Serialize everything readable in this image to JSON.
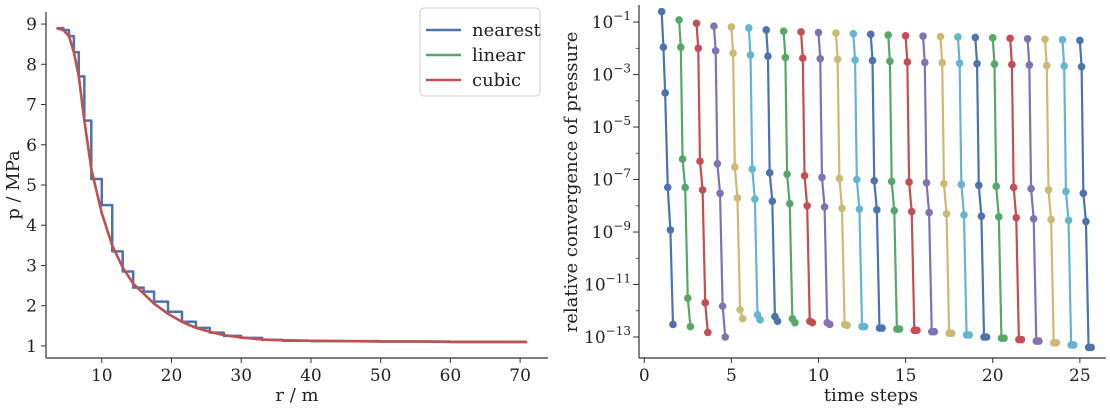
{
  "chart_data": [
    {
      "type": "line",
      "xlabel": "r / m",
      "ylabel": "p / MPa",
      "xlim": [
        2,
        74
      ],
      "ylim": [
        0.7,
        9.3
      ],
      "xticks": [
        10,
        20,
        30,
        40,
        50,
        60,
        70
      ],
      "yticks": [
        1,
        2,
        3,
        4,
        5,
        6,
        7,
        8,
        9
      ],
      "legend_position": "top-right",
      "series": [
        {
          "name": "nearest",
          "color": "#4c72b0",
          "step": true,
          "x": [
            3.5,
            4.5,
            5.3,
            6.0,
            6.7,
            7.5,
            8.5,
            10.0,
            11.5,
            13.0,
            14.5,
            16.0,
            17.5,
            19.5,
            21.5,
            23.5,
            25.5,
            27.5,
            30.0,
            33.0,
            36.0,
            40.0,
            45.0,
            50.0,
            55.0,
            60.0,
            65.0,
            71.0
          ],
          "y": [
            8.9,
            8.85,
            8.7,
            8.3,
            7.7,
            6.6,
            5.15,
            4.5,
            3.35,
            2.85,
            2.45,
            2.35,
            2.1,
            1.85,
            1.6,
            1.45,
            1.33,
            1.25,
            1.2,
            1.15,
            1.13,
            1.12,
            1.12,
            1.11,
            1.11,
            1.1,
            1.1,
            1.1
          ]
        },
        {
          "name": "linear",
          "color": "#55a868",
          "step": false,
          "x": [
            3.5,
            4.5,
            5.3,
            6.0,
            6.7,
            7.5,
            8.5,
            10.0,
            11.5,
            13.0,
            14.5,
            16.0,
            17.5,
            19.5,
            21.5,
            23.5,
            25.5,
            27.5,
            30.0,
            33.0,
            36.0,
            40.0,
            45.0,
            50.0,
            55.0,
            60.0,
            65.0,
            71.0
          ],
          "y": [
            8.9,
            8.85,
            8.7,
            8.3,
            7.7,
            6.6,
            5.4,
            4.3,
            3.5,
            2.95,
            2.55,
            2.3,
            2.05,
            1.8,
            1.6,
            1.45,
            1.35,
            1.27,
            1.21,
            1.16,
            1.14,
            1.13,
            1.12,
            1.11,
            1.11,
            1.1,
            1.1,
            1.1
          ]
        },
        {
          "name": "cubic",
          "color": "#c44e52",
          "step": false,
          "x": [
            3.5,
            4.5,
            5.3,
            6.0,
            6.7,
            7.5,
            8.5,
            10.0,
            11.5,
            13.0,
            14.5,
            16.0,
            17.5,
            19.5,
            21.5,
            23.5,
            25.5,
            27.5,
            30.0,
            33.0,
            36.0,
            40.0,
            45.0,
            50.0,
            55.0,
            60.0,
            65.0,
            71.0
          ],
          "y": [
            8.9,
            8.85,
            8.7,
            8.3,
            7.7,
            6.6,
            5.4,
            4.3,
            3.5,
            2.95,
            2.55,
            2.3,
            2.05,
            1.8,
            1.6,
            1.45,
            1.35,
            1.27,
            1.21,
            1.16,
            1.14,
            1.13,
            1.12,
            1.11,
            1.11,
            1.1,
            1.1,
            1.1
          ]
        }
      ]
    },
    {
      "type": "line",
      "xlabel": "time steps",
      "ylabel": "relative convergence of pressure",
      "yscale": "log",
      "xlim": [
        -0.3,
        26.5
      ],
      "ylim_log10": [
        -13.8,
        -0.35
      ],
      "xticks": [
        0,
        5,
        10,
        15,
        20,
        25
      ],
      "yticks": [
        -1,
        -3,
        -5,
        -7,
        -9,
        -11,
        -13
      ],
      "yticklabels": [
        "10^−1",
        "10^−3",
        "10^−5",
        "10^−7",
        "10^−9",
        "10^−11",
        "10^−13"
      ],
      "marker": "circle",
      "palette": [
        "#4c72b0",
        "#55a868",
        "#c44e52",
        "#8172b2",
        "#ccb974",
        "#64b5cd"
      ],
      "series": [
        {
          "x": [
            1.0,
            1.1,
            1.2,
            1.35,
            1.5,
            1.65
          ],
          "y": [
            0.25,
            0.011,
            0.0002,
            5e-08,
            1.2e-09,
            3e-13
          ]
        },
        {
          "x": [
            2.0,
            2.1,
            2.2,
            2.35,
            2.5,
            2.65
          ],
          "y": [
            0.12,
            0.011,
            6e-07,
            5e-08,
            3e-12,
            2.5e-13
          ]
        },
        {
          "x": [
            3.0,
            3.1,
            3.2,
            3.35,
            3.5,
            3.65
          ],
          "y": [
            0.09,
            0.01,
            5e-07,
            4e-08,
            2e-12,
            1.5e-13
          ]
        },
        {
          "x": [
            4.0,
            4.1,
            4.2,
            4.35,
            4.5,
            4.65
          ],
          "y": [
            0.07,
            0.008,
            4e-07,
            3e-08,
            1.5e-12,
            1e-13
          ]
        },
        {
          "x": [
            5.0,
            5.1,
            5.2,
            5.35,
            5.5,
            5.65
          ],
          "y": [
            0.065,
            0.0065,
            3e-07,
            2e-08,
            1.1e-12,
            5e-13
          ]
        },
        {
          "x": [
            6.0,
            6.1,
            6.2,
            6.35,
            6.5,
            6.65
          ],
          "y": [
            0.06,
            0.0055,
            2.5e-07,
            1.8e-08,
            7e-13,
            4.5e-13
          ]
        },
        {
          "x": [
            7.0,
            7.1,
            7.2,
            7.35,
            7.5,
            7.65
          ],
          "y": [
            0.05,
            0.005,
            1.8e-07,
            1.5e-08,
            6e-13,
            4e-13
          ]
        },
        {
          "x": [
            8.0,
            8.1,
            8.2,
            8.35,
            8.5,
            8.65
          ],
          "y": [
            0.045,
            0.0045,
            1.6e-07,
            1.2e-08,
            5e-13,
            3.5e-13
          ]
        },
        {
          "x": [
            9.0,
            9.1,
            9.2,
            9.35,
            9.5,
            9.65
          ],
          "y": [
            0.042,
            0.0042,
            1.4e-07,
            1e-08,
            4e-13,
            3.5e-13
          ]
        },
        {
          "x": [
            10.0,
            10.1,
            10.2,
            10.35,
            10.5,
            10.65
          ],
          "y": [
            0.04,
            0.004,
            1.2e-07,
            9e-09,
            3.5e-13,
            3e-13
          ]
        },
        {
          "x": [
            11.0,
            11.1,
            11.2,
            11.35,
            11.5,
            11.65
          ],
          "y": [
            0.038,
            0.0038,
            1.1e-07,
            8e-09,
            3e-13,
            2.8e-13
          ]
        },
        {
          "x": [
            12.0,
            12.1,
            12.2,
            12.35,
            12.5,
            12.65
          ],
          "y": [
            0.036,
            0.0036,
            1e-07,
            7.5e-09,
            2.5e-13,
            2.5e-13
          ]
        },
        {
          "x": [
            13.0,
            13.1,
            13.2,
            13.35,
            13.5,
            13.65
          ],
          "y": [
            0.034,
            0.0034,
            9e-08,
            7e-09,
            2.2e-13,
            2.2e-13
          ]
        },
        {
          "x": [
            14.0,
            14.1,
            14.2,
            14.35,
            14.5,
            14.65
          ],
          "y": [
            0.032,
            0.0032,
            8.5e-08,
            6.5e-09,
            2e-13,
            2e-13
          ]
        },
        {
          "x": [
            15.0,
            15.1,
            15.2,
            15.35,
            15.5,
            15.65
          ],
          "y": [
            0.03,
            0.003,
            8e-08,
            6e-09,
            1.8e-13,
            1.8e-13
          ]
        },
        {
          "x": [
            16.0,
            16.1,
            16.2,
            16.35,
            16.5,
            16.65
          ],
          "y": [
            0.029,
            0.0029,
            7.5e-08,
            5.5e-09,
            1.6e-13,
            1.6e-13
          ]
        },
        {
          "x": [
            17.0,
            17.1,
            17.2,
            17.35,
            17.5,
            17.65
          ],
          "y": [
            0.028,
            0.0028,
            7e-08,
            5e-09,
            1.4e-13,
            1.4e-13
          ]
        },
        {
          "x": [
            18.0,
            18.1,
            18.2,
            18.35,
            18.5,
            18.65
          ],
          "y": [
            0.027,
            0.0027,
            6.5e-08,
            4.5e-09,
            1.2e-13,
            1.2e-13
          ]
        },
        {
          "x": [
            19.0,
            19.1,
            19.2,
            19.35,
            19.5,
            19.65
          ],
          "y": [
            0.026,
            0.0026,
            6e-08,
            4e-09,
            1e-13,
            1e-13
          ]
        },
        {
          "x": [
            20.0,
            20.1,
            20.2,
            20.35,
            20.5,
            20.65
          ],
          "y": [
            0.025,
            0.0025,
            5.5e-08,
            3.8e-09,
            9e-14,
            9e-14
          ]
        },
        {
          "x": [
            21.0,
            21.1,
            21.2,
            21.35,
            21.5,
            21.65
          ],
          "y": [
            0.024,
            0.0024,
            5e-08,
            3.5e-09,
            8e-14,
            8e-14
          ]
        },
        {
          "x": [
            22.0,
            22.1,
            22.2,
            22.35,
            22.5,
            22.65
          ],
          "y": [
            0.023,
            0.0023,
            4.5e-08,
            3.2e-09,
            7e-14,
            7e-14
          ]
        },
        {
          "x": [
            23.0,
            23.1,
            23.2,
            23.35,
            23.5,
            23.65
          ],
          "y": [
            0.022,
            0.0022,
            4e-08,
            3e-09,
            6e-14,
            6e-14
          ]
        },
        {
          "x": [
            24.0,
            24.1,
            24.2,
            24.35,
            24.5,
            24.65
          ],
          "y": [
            0.021,
            0.0021,
            3.5e-08,
            2.8e-09,
            5e-14,
            5e-14
          ]
        },
        {
          "x": [
            25.0,
            25.1,
            25.2,
            25.35,
            25.5,
            25.65
          ],
          "y": [
            0.02,
            0.002,
            3e-08,
            2.5e-09,
            4e-14,
            4e-14
          ]
        }
      ]
    }
  ]
}
